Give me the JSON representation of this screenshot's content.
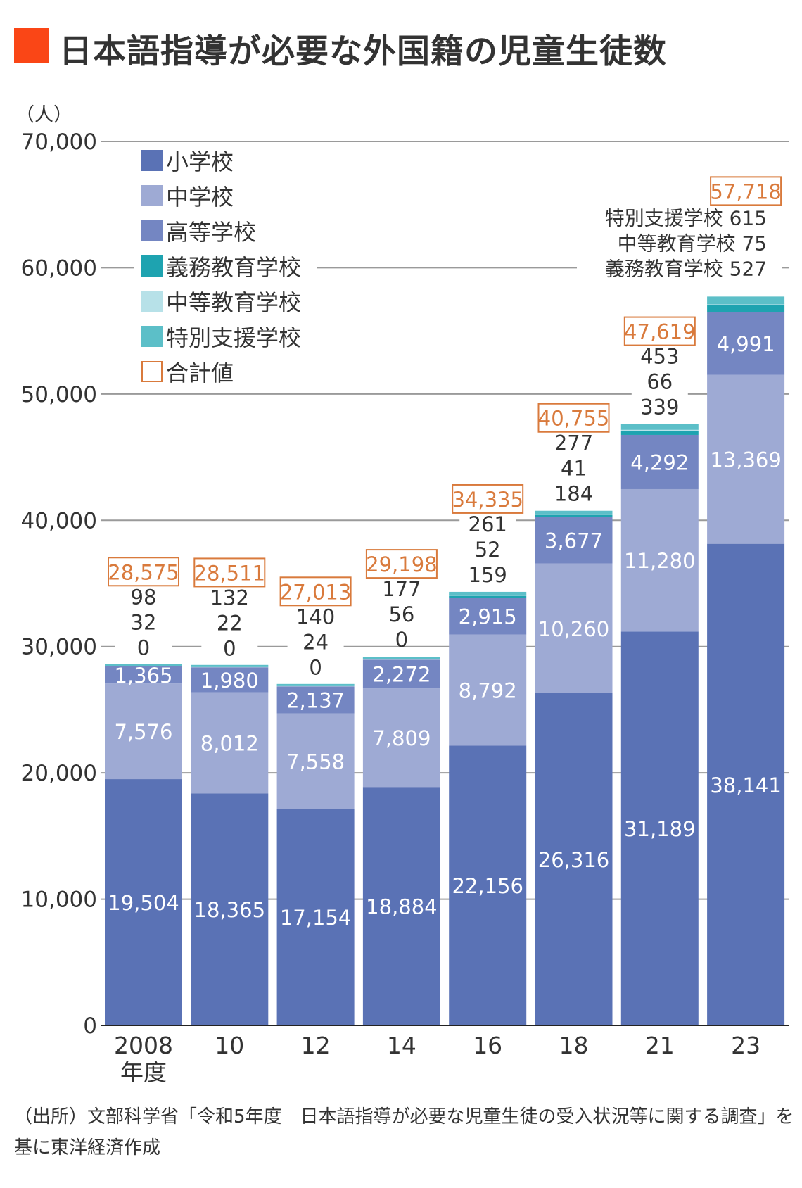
{
  "title": "日本語指導が必要な外国籍の児童生徒数",
  "source_note": "（出所）文部科学省「令和5年度　日本語指導が必要な児童生徒の受入状況等に関する調査」を基に東洋経済作成",
  "chart_data": {
    "type": "bar",
    "stacked": true,
    "title": "日本語指導が必要な外国籍の児童生徒数",
    "ylabel": "（人）",
    "xlabel": "年度",
    "ylim": [
      0,
      70000
    ],
    "yticks": [
      0,
      10000,
      20000,
      30000,
      40000,
      50000,
      60000,
      70000
    ],
    "ytick_labels": [
      "0",
      "10,000",
      "20,000",
      "30,000",
      "40,000",
      "50,000",
      "60,000",
      "70,000"
    ],
    "grid": true,
    "legend_position": "top-left",
    "categories": [
      "2008",
      "10",
      "12",
      "14",
      "16",
      "18",
      "21",
      "23"
    ],
    "category_sublabel": "年度",
    "series": [
      {
        "name": "小学校",
        "color": "#5a72b5",
        "label_color": "#ffffff",
        "values": [
          19504,
          18365,
          17154,
          18884,
          22156,
          26316,
          31189,
          38141
        ]
      },
      {
        "name": "中学校",
        "color": "#9eaad4",
        "label_color": "#ffffff",
        "values": [
          7576,
          8012,
          7558,
          7809,
          8792,
          10260,
          11280,
          13369
        ]
      },
      {
        "name": "高等学校",
        "color": "#7486c2",
        "label_color": "#ffffff",
        "values": [
          1365,
          1980,
          2137,
          2272,
          2915,
          3677,
          4292,
          4991
        ]
      },
      {
        "name": "義務教育学校",
        "color": "#1ea3b0",
        "values": [
          0,
          0,
          0,
          0,
          159,
          184,
          339,
          527
        ]
      },
      {
        "name": "中等教育学校",
        "color": "#b7e1e8",
        "values": [
          32,
          22,
          24,
          56,
          52,
          41,
          66,
          75
        ]
      },
      {
        "name": "特別支援学校",
        "color": "#5cbfc8",
        "values": [
          98,
          132,
          140,
          177,
          261,
          277,
          453,
          615
        ]
      }
    ],
    "totals": {
      "name": "合計値",
      "color": "#d97a3c",
      "values": [
        28575,
        28511,
        27013,
        29198,
        34335,
        40755,
        47619,
        57718
      ]
    },
    "annotation_2023": [
      {
        "label": "特別支援学校",
        "value": "615"
      },
      {
        "label": "中等教育学校",
        "value": "75"
      },
      {
        "label": "義務教育学校",
        "value": "527"
      }
    ]
  }
}
